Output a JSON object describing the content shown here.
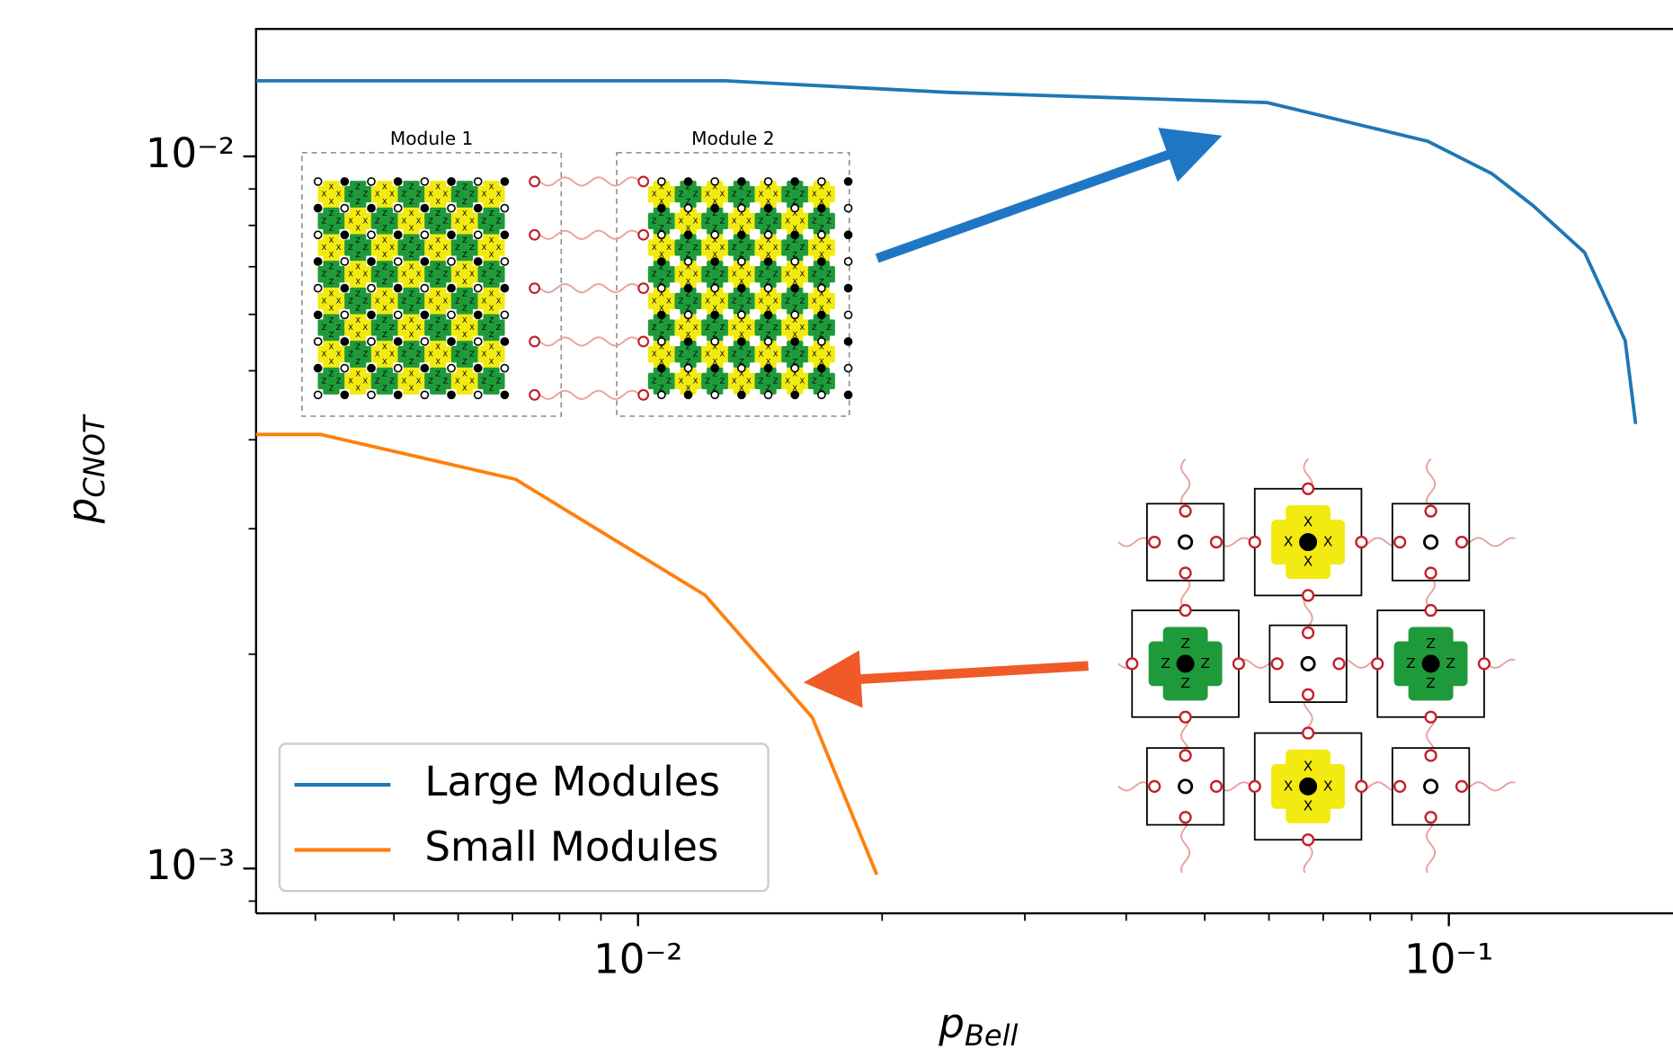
{
  "chart_data": {
    "type": "line",
    "xlabel": "p",
    "xlabel_sub": "Bell",
    "ylabel": "p",
    "ylabel_sub": "CNOT",
    "xlog": true,
    "ylog": true,
    "xlim": [
      0.00338,
      0.189
    ],
    "ylim": [
      0.000865,
      0.0151
    ],
    "xticks": [
      {
        "value": 0.01,
        "label": "10⁻²"
      },
      {
        "value": 0.1,
        "label": "10⁻¹"
      }
    ],
    "yticks": [
      {
        "value": 0.001,
        "label": "10⁻³"
      },
      {
        "value": 0.01,
        "label": "10⁻²"
      }
    ],
    "xminorticks": [
      0.004,
      0.005,
      0.006,
      0.007,
      0.008,
      0.009,
      0.02,
      0.03,
      0.04,
      0.05,
      0.06,
      0.07,
      0.08,
      0.09
    ],
    "yminorticks": [
      0.0009,
      0.002,
      0.003,
      0.004,
      0.005,
      0.006,
      0.007,
      0.008,
      0.009
    ],
    "legend": "lower left",
    "series": [
      {
        "name": "Large Modules",
        "color": "#1f77b4",
        "x": [
          0.00338,
          0.0128,
          0.0242,
          0.0597,
          0.0942,
          0.113,
          0.127,
          0.147,
          0.165,
          0.17
        ],
        "values": [
          0.01277,
          0.01277,
          0.0123,
          0.0119,
          0.0105,
          0.00946,
          0.00853,
          0.00733,
          0.00551,
          0.00421
        ]
      },
      {
        "name": "Small Modules",
        "color": "#ff7f0e",
        "x": [
          0.00338,
          0.00406,
          0.00706,
          0.0121,
          0.0164,
          0.0197
        ],
        "values": [
          0.00407,
          0.00407,
          0.00352,
          0.00242,
          0.00163,
          0.00098
        ]
      }
    ],
    "inset_labels": [
      "Module 1",
      "Module 2"
    ],
    "stabilizer_labels": [
      "X",
      "Z"
    ]
  }
}
